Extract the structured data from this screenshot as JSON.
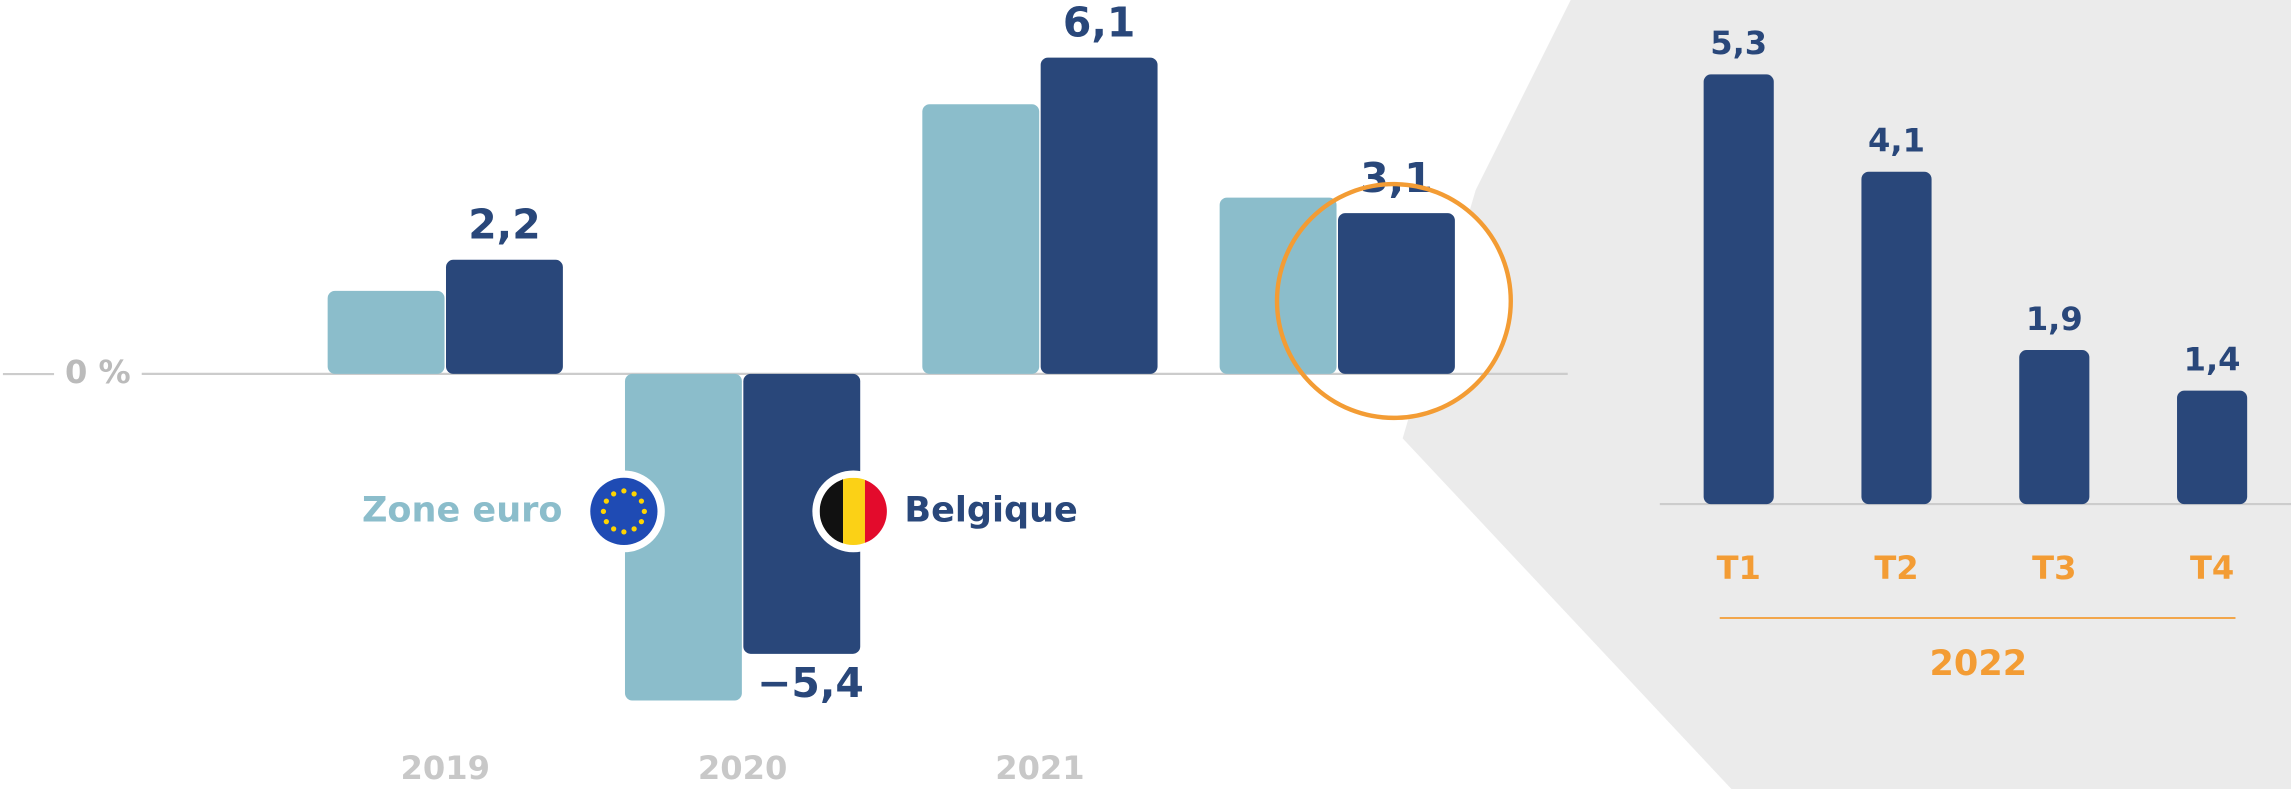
{
  "chart_data": [
    {
      "type": "bar",
      "categories": [
        "2019",
        "2020",
        "2021",
        null
      ],
      "series": [
        {
          "name": "Zone euro",
          "color": "#8bbdcb",
          "values": [
            1.6,
            -6.3,
            5.2,
            3.4
          ]
        },
        {
          "name": "Belgique",
          "color": "#29477a",
          "values": [
            2.2,
            -5.4,
            6.1,
            3.1
          ],
          "value_labels": [
            "2,2",
            "−5,4",
            "6,1",
            "3,1"
          ]
        }
      ],
      "ylim": [
        -7.5,
        7.2
      ],
      "yticks": [
        {
          "value": 0,
          "label": "0 %"
        }
      ]
    },
    {
      "type": "bar",
      "categories": [
        "T1",
        "T2",
        "T3",
        "T4"
      ],
      "values": [
        5.3,
        4.1,
        1.9,
        1.4
      ],
      "value_labels": [
        "5,3",
        "4,1",
        "1,9",
        "1,4"
      ],
      "color": "#29477a",
      "xlabel": "2022",
      "ylim": [
        0,
        6.2
      ]
    }
  ]
}
